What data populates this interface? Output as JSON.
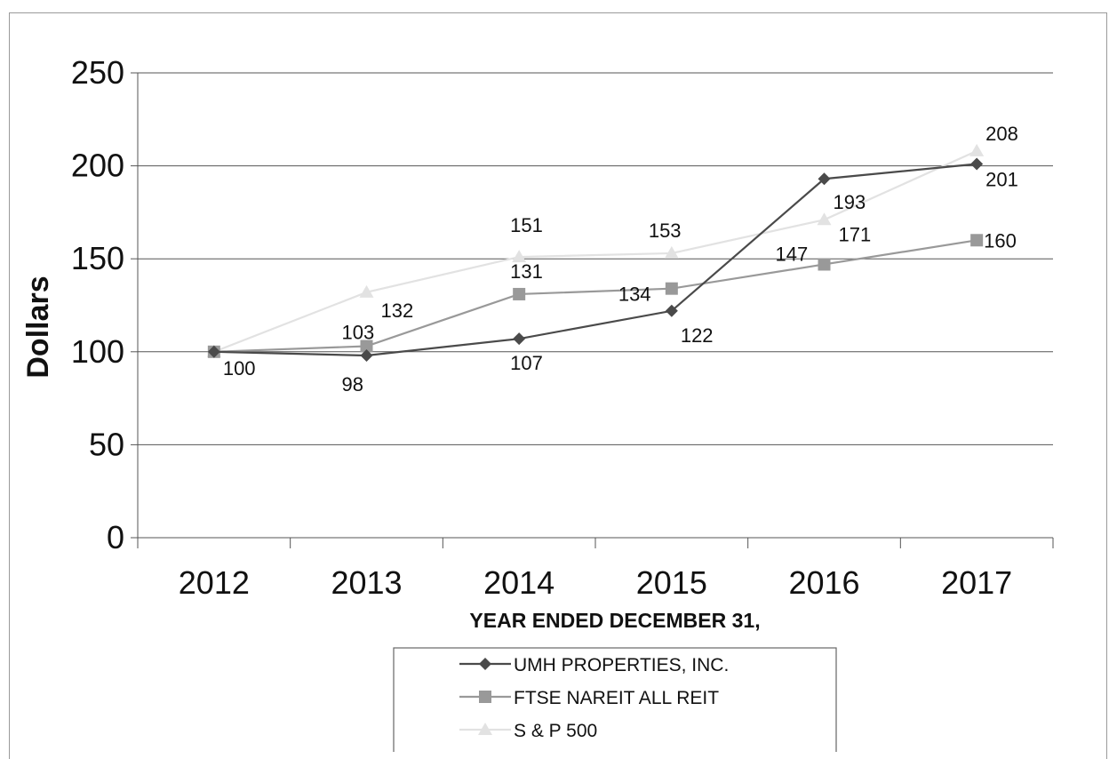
{
  "chart_data": {
    "type": "line",
    "title": "",
    "xlabel": "YEAR ENDED DECEMBER 31,",
    "ylabel": "Dollars",
    "categories": [
      "2012",
      "2013",
      "2014",
      "2015",
      "2016",
      "2017"
    ],
    "ylim": [
      0,
      250
    ],
    "yticks": [
      0,
      50,
      100,
      150,
      200,
      250
    ],
    "grid": true,
    "legend_placement": "bottom-center",
    "series": [
      {
        "name": "UMH PROPERTIES, INC.",
        "values": [
          100,
          98,
          107,
          122,
          193,
          201
        ],
        "color": "#4a4a4a",
        "marker": "diamond"
      },
      {
        "name": "FTSE NAREIT ALL REIT",
        "values": [
          100,
          103,
          131,
          134,
          147,
          160
        ],
        "color": "#999999",
        "marker": "square"
      },
      {
        "name": "S & P 500",
        "values": [
          100,
          132,
          151,
          153,
          171,
          208
        ],
        "color": "#e2e2e2",
        "marker": "triangle"
      }
    ],
    "data_labels": [
      {
        "series": 0,
        "text": [
          "100",
          "98",
          "107",
          "122",
          "193",
          "201"
        ]
      },
      {
        "series": 1,
        "text": [
          "",
          "103",
          "131",
          "134",
          "147",
          "160"
        ]
      },
      {
        "series": 2,
        "text": [
          "",
          "132",
          "151",
          "153",
          "171",
          "208"
        ]
      }
    ]
  }
}
